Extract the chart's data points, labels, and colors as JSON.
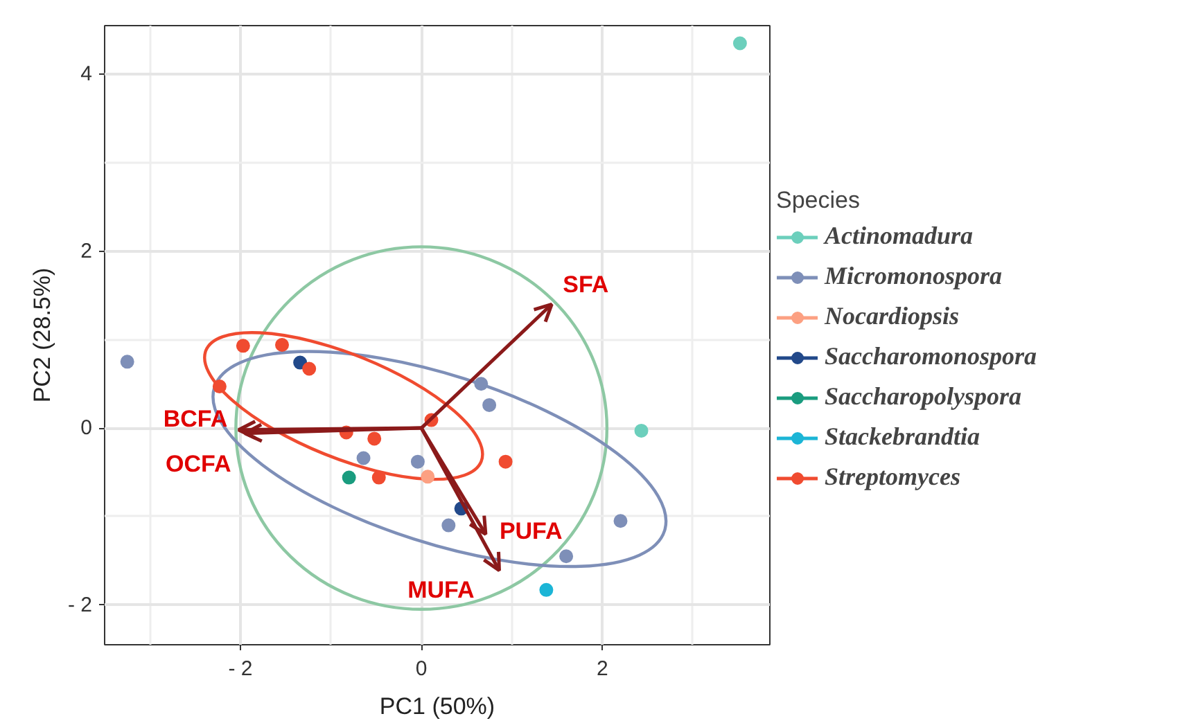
{
  "chart_data": {
    "type": "scatter",
    "xlabel": "PC1 (50%)",
    "ylabel": "PC2 (28.5%)",
    "legend_title": "Species",
    "legend": "right",
    "grid": true,
    "marker": "circle",
    "xlim": [
      -3.5,
      3.85
    ],
    "ylim": [
      -2.45,
      4.55
    ],
    "xticks": [
      {
        "value": -2,
        "label": "- 2"
      },
      0,
      2
    ],
    "yticks": [
      {
        "value": -2,
        "label": "- 2"
      },
      0,
      2,
      4
    ],
    "series": [
      {
        "name": "Actinomadura",
        "color": "#6ccfbc",
        "x": [
          3.52,
          2.43
        ],
        "values": [
          4.35,
          -0.03
        ]
      },
      {
        "name": "Micromonospora",
        "color": "#7e8fb8",
        "x": [
          -3.25,
          -0.64,
          -0.04,
          0.3,
          0.66,
          0.75,
          2.2,
          1.6
        ],
        "values": [
          0.75,
          -0.34,
          -0.38,
          -1.1,
          0.5,
          0.26,
          -1.05,
          -1.45
        ]
      },
      {
        "name": "Nocardiopsis",
        "color": "#fca082",
        "x": [
          0.07
        ],
        "values": [
          -0.55
        ]
      },
      {
        "name": "Saccharomonospora",
        "color": "#22498a",
        "x": [
          -1.34,
          0.44
        ],
        "values": [
          0.74,
          -0.91
        ]
      },
      {
        "name": "Saccharopolyspora",
        "color": "#1a9c7f",
        "x": [
          -0.8
        ],
        "values": [
          -0.56
        ]
      },
      {
        "name": "Stackebrandtia",
        "color": "#1cb5d6",
        "x": [
          1.38
        ],
        "values": [
          -1.83
        ]
      },
      {
        "name": "Streptomyces",
        "color": "#f04b30",
        "x": [
          -1.97,
          -1.54,
          -1.24,
          -2.23,
          -0.83,
          -0.52,
          -0.47,
          0.11,
          0.93
        ],
        "values": [
          0.93,
          0.94,
          0.67,
          0.47,
          -0.05,
          -0.12,
          -0.56,
          0.09,
          -0.38
        ]
      }
    ],
    "annotations": [
      "SFA",
      "BCFA",
      "OCFA",
      "PUFA",
      "MUFA"
    ]
  }
}
